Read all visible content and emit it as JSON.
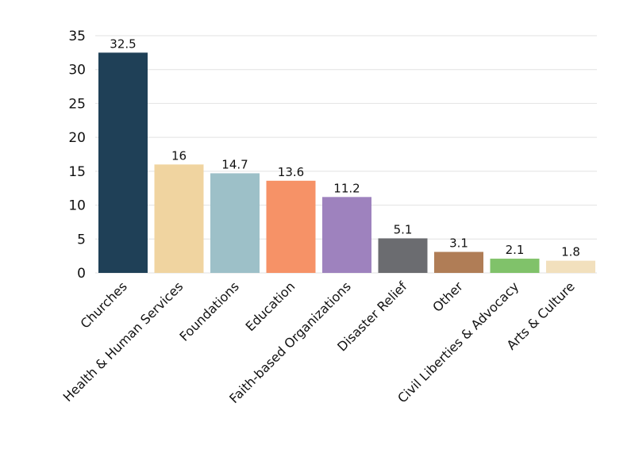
{
  "chart_data": {
    "type": "bar",
    "title": "",
    "xlabel": "",
    "ylabel": "",
    "ylim": [
      0,
      35
    ],
    "yticks": [
      0,
      5,
      10,
      15,
      20,
      25,
      30,
      35
    ],
    "grid": true,
    "categories": [
      "Churches",
      "Health & Human Services",
      "Foundations",
      "Education",
      "Faith-based Organizations",
      "Disaster Relief",
      "Other",
      "Civil Liberties & Advocacy",
      "Arts & Culture"
    ],
    "values": [
      32.5,
      16,
      14.7,
      13.6,
      11.2,
      5.1,
      3.1,
      2.1,
      1.8
    ],
    "value_labels": [
      "32.5",
      "16",
      "14.7",
      "13.6",
      "11.2",
      "5.1",
      "3.1",
      "2.1",
      "1.8"
    ],
    "colors": [
      "#1f4057",
      "#f0d4a0",
      "#9dc0c8",
      "#f69267",
      "#9e82be",
      "#6b6c70",
      "#b07d56",
      "#80c26a",
      "#f2e0bd"
    ]
  }
}
